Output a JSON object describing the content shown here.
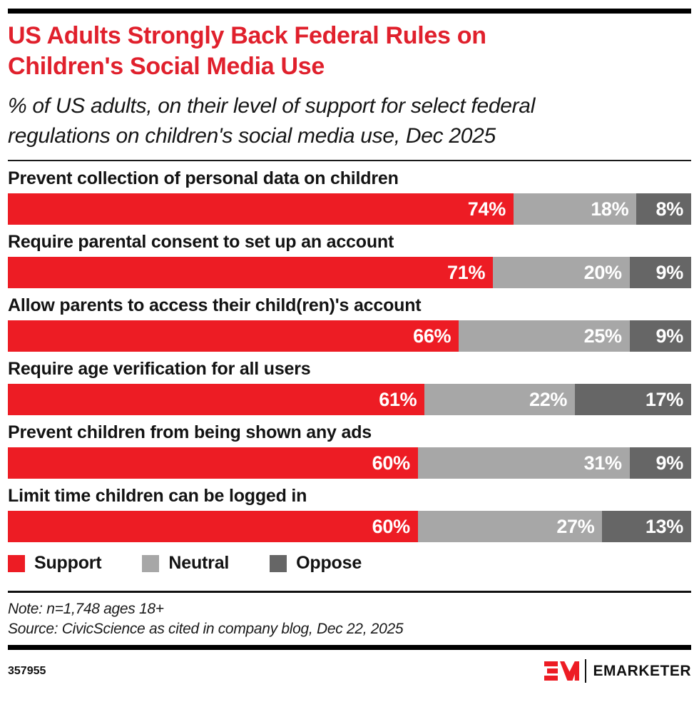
{
  "header": {
    "title": "US Adults Strongly Back Federal Rules on Children's Social Media Use",
    "subtitle": "% of US adults, on their level of support for select federal regulations on children's social media use, Dec 2025"
  },
  "chart_data": {
    "type": "bar",
    "orientation": "horizontal",
    "stacked": true,
    "unit": "%",
    "title": "US Adults Strongly Back Federal Rules on Children's Social Media Use",
    "categories": [
      "Prevent collection of personal data on children",
      "Require parental consent to set up an account",
      "Allow parents to access their child(ren)'s account",
      "Require age verification for all users",
      "Prevent children from being shown any ads",
      "Limit time children can be logged in"
    ],
    "series": [
      {
        "name": "Support",
        "color": "#ED1C24",
        "values": [
          74,
          71,
          66,
          61,
          60,
          60
        ]
      },
      {
        "name": "Neutral",
        "color": "#A7A7A7",
        "values": [
          18,
          20,
          25,
          22,
          31,
          27
        ]
      },
      {
        "name": "Oppose",
        "color": "#666666",
        "values": [
          8,
          9,
          9,
          17,
          9,
          13
        ]
      }
    ],
    "value_label_format": "{v}%",
    "xlim": [
      0,
      100
    ],
    "grid": false,
    "legend_position": "bottom"
  },
  "footnotes": {
    "note": "Note: n=1,748 ages 18+",
    "source": "Source: CivicScience as cited in company blog, Dec 22, 2025"
  },
  "footer": {
    "chart_id": "357955",
    "brand_name": "EMARKETER",
    "logo_monogram": "EM"
  },
  "colors": {
    "title_red": "#E0202C",
    "bar_red": "#ED1C24",
    "neutral_gray": "#A7A7A7",
    "oppose_gray": "#666666",
    "rule_black": "#000000"
  }
}
